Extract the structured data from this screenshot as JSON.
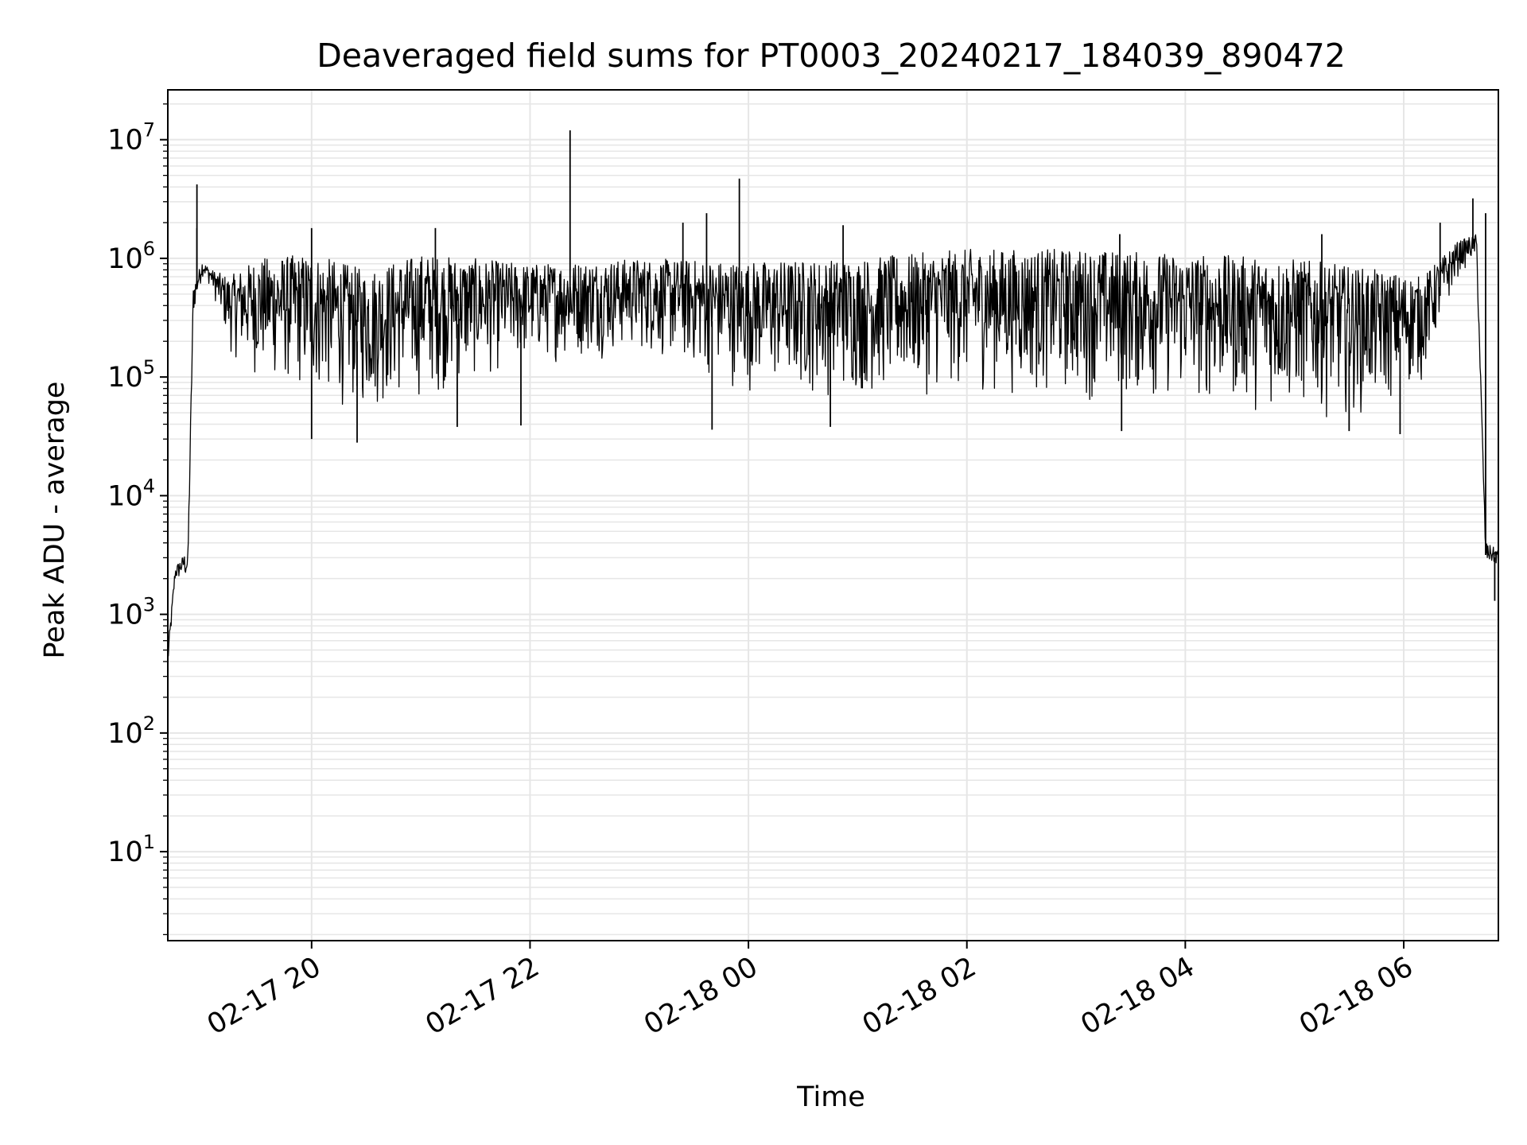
{
  "chart_data": {
    "type": "line",
    "title": "Deaveraged field sums for PT0003_20240217_184039_890472",
    "xlabel": "Time",
    "ylabel": "Peak ADU - average",
    "yscale": "log",
    "ylim_log10": [
      0.25,
      7.42
    ],
    "xlim": [
      "2024-02-17 18:41",
      "2024-02-18 06:52"
    ],
    "grid": true,
    "line_color": "#000000",
    "grid_color": "#e6e6e6",
    "x_ticks": [
      {
        "t": "2024-02-17 20:00",
        "label": "02-17 20"
      },
      {
        "t": "2024-02-17 22:00",
        "label": "02-17 22"
      },
      {
        "t": "2024-02-18 00:00",
        "label": "02-18 00"
      },
      {
        "t": "2024-02-18 02:00",
        "label": "02-18 02"
      },
      {
        "t": "2024-02-18 04:00",
        "label": "02-18 04"
      },
      {
        "t": "2024-02-18 06:00",
        "label": "02-18 06"
      }
    ],
    "y_ticks": [
      {
        "exp": 1,
        "base": "10",
        "sup": "1"
      },
      {
        "exp": 2,
        "base": "10",
        "sup": "2"
      },
      {
        "exp": 3,
        "base": "10",
        "sup": "3"
      },
      {
        "exp": 4,
        "base": "10",
        "sup": "4"
      },
      {
        "exp": 5,
        "base": "10",
        "sup": "5"
      },
      {
        "exp": 6,
        "base": "10",
        "sup": "6"
      },
      {
        "exp": 7,
        "base": "10",
        "sup": "7"
      }
    ],
    "envelope": [
      {
        "t": "2024-02-17 18:41",
        "low": 300,
        "high": 500
      },
      {
        "t": "2024-02-17 18:45",
        "low": 1800,
        "high": 2500
      },
      {
        "t": "2024-02-17 18:50",
        "low": 2000,
        "high": 3200
      },
      {
        "t": "2024-02-17 18:52",
        "low": 1600,
        "high": 3300
      },
      {
        "t": "2024-02-17 18:55",
        "low": 300000,
        "high": 600000
      },
      {
        "t": "2024-02-17 19:00",
        "low": 700000,
        "high": 950000
      },
      {
        "t": "2024-02-17 19:05",
        "low": 550000,
        "high": 800000
      },
      {
        "t": "2024-02-17 19:15",
        "low": 150000,
        "high": 700000
      },
      {
        "t": "2024-02-17 19:30",
        "low": 90000,
        "high": 1000000
      },
      {
        "t": "2024-02-17 20:00",
        "low": 60000,
        "high": 1100000
      },
      {
        "t": "2024-02-17 20:30",
        "low": 45000,
        "high": 800000
      },
      {
        "t": "2024-02-17 21:00",
        "low": 60000,
        "high": 1100000
      },
      {
        "t": "2024-02-17 22:00",
        "low": 120000,
        "high": 900000
      },
      {
        "t": "2024-02-17 23:00",
        "low": 150000,
        "high": 1000000
      },
      {
        "t": "2024-02-18 00:00",
        "low": 70000,
        "high": 950000
      },
      {
        "t": "2024-02-18 01:00",
        "low": 60000,
        "high": 1000000
      },
      {
        "t": "2024-02-18 02:00",
        "low": 70000,
        "high": 1200000
      },
      {
        "t": "2024-02-18 03:00",
        "low": 60000,
        "high": 1200000
      },
      {
        "t": "2024-02-18 04:00",
        "low": 55000,
        "high": 1100000
      },
      {
        "t": "2024-02-18 05:00",
        "low": 45000,
        "high": 1000000
      },
      {
        "t": "2024-02-18 05:45",
        "low": 45000,
        "high": 800000
      },
      {
        "t": "2024-02-18 06:10",
        "low": 80000,
        "high": 700000
      },
      {
        "t": "2024-02-18 06:30",
        "low": 700000,
        "high": 1400000
      },
      {
        "t": "2024-02-18 06:40",
        "low": 1000000,
        "high": 1600000
      },
      {
        "t": "2024-02-18 06:45",
        "low": 2500,
        "high": 4000
      },
      {
        "t": "2024-02-18 06:52",
        "low": 2500,
        "high": 3500
      }
    ],
    "spikes": [
      {
        "t": "2024-02-17 18:57",
        "value": 4200000
      },
      {
        "t": "2024-02-17 18:57",
        "value": 1800000
      },
      {
        "t": "2024-02-17 20:00",
        "value": 1800000
      },
      {
        "t": "2024-02-17 21:08",
        "value": 1800000
      },
      {
        "t": "2024-02-17 22:22",
        "value": 12000000
      },
      {
        "t": "2024-02-17 23:24",
        "value": 2000000
      },
      {
        "t": "2024-02-17 23:37",
        "value": 2400000
      },
      {
        "t": "2024-02-17 23:55",
        "value": 4700000
      },
      {
        "t": "2024-02-18 00:52",
        "value": 1900000
      },
      {
        "t": "2024-02-18 03:24",
        "value": 1600000
      },
      {
        "t": "2024-02-18 05:15",
        "value": 1600000
      },
      {
        "t": "2024-02-18 06:20",
        "value": 2000000
      },
      {
        "t": "2024-02-18 06:38",
        "value": 3200000
      },
      {
        "t": "2024-02-18 06:45",
        "value": 2400000
      },
      {
        "t": "2024-02-17 20:25",
        "value": 28000
      },
      {
        "t": "2024-02-17 20:00",
        "value": 30000
      },
      {
        "t": "2024-02-17 21:20",
        "value": 38000
      },
      {
        "t": "2024-02-17 21:55",
        "value": 39000
      },
      {
        "t": "2024-02-17 23:40",
        "value": 36000
      },
      {
        "t": "2024-02-18 00:45",
        "value": 38000
      },
      {
        "t": "2024-02-18 03:25",
        "value": 35000
      },
      {
        "t": "2024-02-18 05:30",
        "value": 35000
      },
      {
        "t": "2024-02-18 05:58",
        "value": 33000
      },
      {
        "t": "2024-02-18 06:50",
        "value": 1300
      }
    ]
  }
}
